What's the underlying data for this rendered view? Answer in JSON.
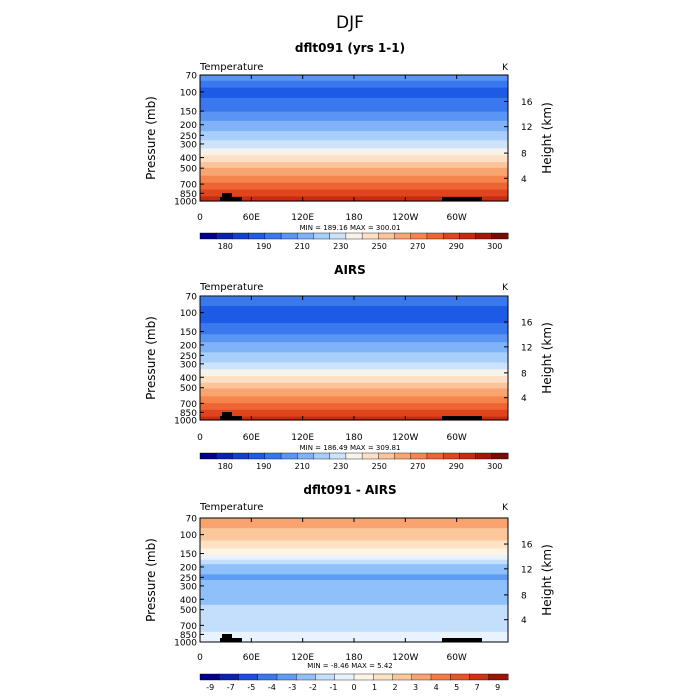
{
  "page": {
    "title": "DJF"
  },
  "colors": {
    "temperature_scale": [
      "#00008c",
      "#0a22b4",
      "#1241d2",
      "#1e5be6",
      "#3a78ee",
      "#5a95f4",
      "#80b2f8",
      "#a8cefb",
      "#cde3fc",
      "#f7f2ea",
      "#fde0c5",
      "#fcc49b",
      "#f9a571",
      "#f5854d",
      "#ee6533",
      "#e0451e",
      "#c62a10",
      "#a31808",
      "#7a0a04"
    ],
    "difference_scale": [
      "#00008c",
      "#0a22b4",
      "#1e4fdc",
      "#3a78ee",
      "#5f9df5",
      "#8fc0fa",
      "#c3dffc",
      "#e8f3ff",
      "#fff4e6",
      "#fde3c3",
      "#fcc79a",
      "#f9a370",
      "#f57a46",
      "#e85628",
      "#cf3313",
      "#9c1408"
    ]
  },
  "chart_data": [
    {
      "type": "heatmap",
      "title": "dflt091 (yrs 1-1)",
      "variable_label": "Temperature",
      "units": "K",
      "ylabel_left": "Pressure (mb)",
      "ylabel_right": "Height (km)",
      "pressure_ticks": [
        "70",
        "100",
        "150",
        "200",
        "250",
        "300",
        "400",
        "500",
        "700",
        "850",
        "1000"
      ],
      "height_ticks": [
        "16",
        "12",
        "8",
        "4"
      ],
      "longitude_ticks": [
        "0",
        "60E",
        "120E",
        "180",
        "120W",
        "60W"
      ],
      "stats": "MIN = 189.16   MAX = 300.01",
      "min": 189.16,
      "max": 300.01,
      "colorbar_labels": [
        "180",
        "190",
        "210",
        "230",
        "250",
        "270",
        "290",
        "300"
      ],
      "profile": [
        {
          "p": 70,
          "value": 214
        },
        {
          "p": 100,
          "value": 199
        },
        {
          "p": 150,
          "value": 209
        },
        {
          "p": 200,
          "value": 219
        },
        {
          "p": 250,
          "value": 226
        },
        {
          "p": 300,
          "value": 232
        },
        {
          "p": 400,
          "value": 246
        },
        {
          "p": 500,
          "value": 257
        },
        {
          "p": 700,
          "value": 272
        },
        {
          "p": 850,
          "value": 281
        },
        {
          "p": 1000,
          "value": 289
        }
      ]
    },
    {
      "type": "heatmap",
      "title": "AIRS",
      "variable_label": "Temperature",
      "units": "K",
      "ylabel_left": "Pressure (mb)",
      "ylabel_right": "Height (km)",
      "pressure_ticks": [
        "70",
        "100",
        "150",
        "200",
        "250",
        "300",
        "400",
        "500",
        "700",
        "850",
        "1000"
      ],
      "height_ticks": [
        "16",
        "12",
        "8",
        "4"
      ],
      "longitude_ticks": [
        "0",
        "60E",
        "120E",
        "180",
        "120W",
        "60W"
      ],
      "stats": "MIN = 186.49   MAX = 309.81",
      "min": 186.49,
      "max": 309.81,
      "colorbar_labels": [
        "180",
        "190",
        "210",
        "230",
        "250",
        "270",
        "290",
        "300"
      ],
      "profile": [
        {
          "p": 70,
          "value": 210
        },
        {
          "p": 100,
          "value": 197
        },
        {
          "p": 150,
          "value": 207
        },
        {
          "p": 200,
          "value": 218
        },
        {
          "p": 250,
          "value": 225
        },
        {
          "p": 300,
          "value": 231
        },
        {
          "p": 400,
          "value": 245
        },
        {
          "p": 500,
          "value": 256
        },
        {
          "p": 700,
          "value": 271
        },
        {
          "p": 850,
          "value": 280
        },
        {
          "p": 1000,
          "value": 289
        }
      ]
    },
    {
      "type": "heatmap",
      "title": "dflt091 - AIRS",
      "variable_label": "Temperature",
      "units": "K",
      "ylabel_left": "Pressure (mb)",
      "ylabel_right": "Height (km)",
      "pressure_ticks": [
        "70",
        "100",
        "150",
        "200",
        "250",
        "300",
        "400",
        "500",
        "700",
        "850",
        "1000"
      ],
      "height_ticks": [
        "16",
        "12",
        "8",
        "4"
      ],
      "longitude_ticks": [
        "0",
        "60E",
        "120E",
        "180",
        "120W",
        "60W"
      ],
      "stats": "MIN = -8.46   MAX =   5.42",
      "min": -8.46,
      "max": 5.42,
      "colorbar_labels": [
        "-9",
        "-7",
        "-5",
        "-4",
        "-3",
        "-2",
        "-1",
        "0",
        "1",
        "2",
        "3",
        "4",
        "5",
        "7",
        "9"
      ],
      "profile": [
        {
          "p": 70,
          "value": 4.0
        },
        {
          "p": 100,
          "value": 3.0
        },
        {
          "p": 150,
          "value": 0.5
        },
        {
          "p": 200,
          "value": -3.0
        },
        {
          "p": 250,
          "value": -3.5
        },
        {
          "p": 300,
          "value": -3.0
        },
        {
          "p": 400,
          "value": -2.5
        },
        {
          "p": 500,
          "value": -2.0
        },
        {
          "p": 700,
          "value": -1.5
        },
        {
          "p": 850,
          "value": -1.0
        },
        {
          "p": 1000,
          "value": -0.5
        }
      ]
    }
  ]
}
